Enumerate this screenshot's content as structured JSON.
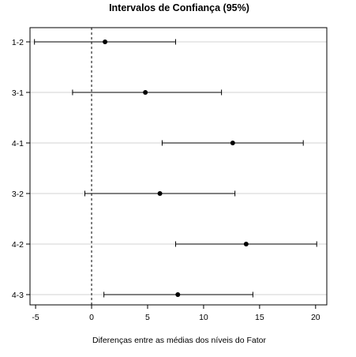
{
  "chart_data": {
    "type": "interval",
    "title": "Intervalos de Confiança (95%)",
    "xlabel": "Diferenças entre as médias dos níveis do Fator",
    "ylabel": "",
    "xlim": [
      -5.5,
      21
    ],
    "xticks": [
      -5,
      0,
      5,
      10,
      15,
      20
    ],
    "reference_line": 0,
    "grid": "horizontal",
    "categories": [
      "1-2",
      "3-1",
      "4-1",
      "3-2",
      "4-2",
      "4-3"
    ],
    "estimate": [
      1.2,
      4.8,
      12.6,
      6.1,
      13.8,
      7.7
    ],
    "lower": [
      -5.1,
      -1.7,
      6.3,
      -0.6,
      7.5,
      1.1
    ],
    "upper": [
      7.5,
      11.6,
      18.9,
      12.8,
      20.1,
      14.4
    ]
  }
}
